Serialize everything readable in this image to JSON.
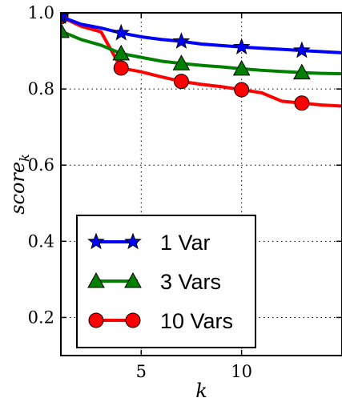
{
  "chart_data": {
    "type": "line",
    "xlabel": "k",
    "ylabel": "score",
    "ylabel_subscript": "k",
    "xlim": [
      1,
      15
    ],
    "ylim": [
      0.1,
      1.0
    ],
    "xticks": [
      5,
      10
    ],
    "xtick_labels": [
      "5",
      "10"
    ],
    "yticks": [
      0.2,
      0.4,
      0.6,
      0.8,
      1.0
    ],
    "ytick_labels": [
      "0.2",
      "0.4",
      "0.6",
      "0.8",
      "1.0"
    ],
    "grid": true,
    "legend_position": "bottom-left",
    "series": [
      {
        "name": "1 Var",
        "color": "#0000ff",
        "marker": "star",
        "x": [
          1,
          2,
          3,
          4,
          5,
          6,
          7,
          8,
          9,
          10,
          11,
          12,
          13,
          14,
          15
        ],
        "y": [
          0.99,
          0.97,
          0.96,
          0.947,
          0.937,
          0.93,
          0.925,
          0.918,
          0.914,
          0.91,
          0.907,
          0.904,
          0.901,
          0.898,
          0.895
        ],
        "marker_x": [
          1,
          4,
          7,
          10,
          13
        ],
        "marker_y": [
          0.99,
          0.947,
          0.925,
          0.91,
          0.901
        ]
      },
      {
        "name": "3 Vars",
        "color": "#008000",
        "marker": "triangle",
        "x": [
          1,
          2,
          3,
          4,
          5,
          6,
          7,
          8,
          9,
          10,
          11,
          12,
          13,
          14,
          15
        ],
        "y": [
          0.952,
          0.93,
          0.915,
          0.893,
          0.883,
          0.873,
          0.867,
          0.862,
          0.858,
          0.853,
          0.849,
          0.846,
          0.843,
          0.841,
          0.84
        ],
        "marker_x": [
          1,
          4,
          7,
          10,
          13
        ],
        "marker_y": [
          0.952,
          0.893,
          0.867,
          0.853,
          0.843
        ]
      },
      {
        "name": "10 Vars",
        "color": "#ff0000",
        "marker": "circle",
        "x": [
          1,
          2,
          3,
          4,
          5,
          6,
          7,
          8,
          9,
          10,
          11,
          12,
          13,
          14,
          15
        ],
        "y": [
          0.99,
          0.965,
          0.95,
          0.855,
          0.845,
          0.832,
          0.82,
          0.812,
          0.806,
          0.798,
          0.79,
          0.768,
          0.763,
          0.758,
          0.755
        ],
        "marker_x": [
          1,
          4,
          7,
          10,
          13
        ],
        "marker_y": [
          0.99,
          0.855,
          0.82,
          0.798,
          0.763
        ]
      }
    ]
  }
}
